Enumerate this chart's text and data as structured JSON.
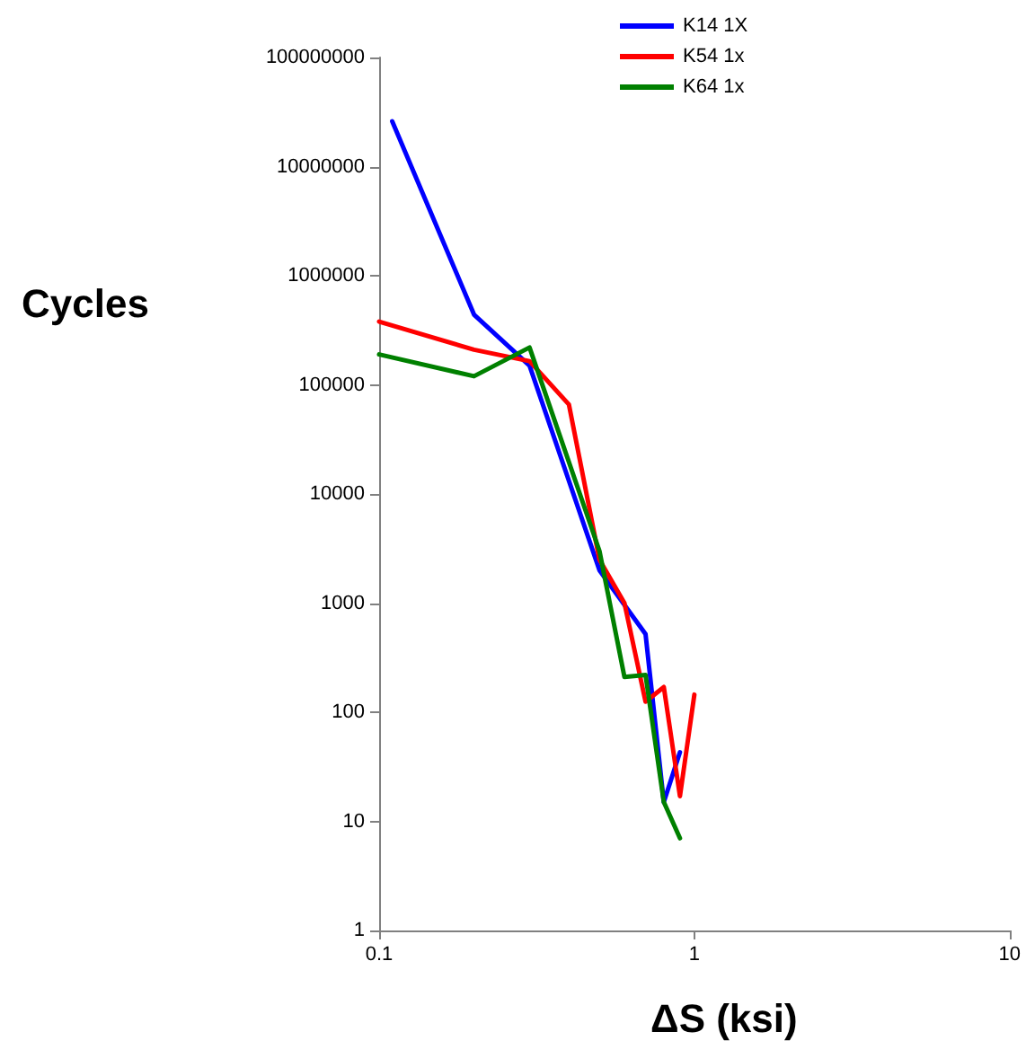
{
  "chart_data": {
    "type": "line",
    "xlabel": "ΔS (ksi)",
    "ylabel": "Cycles",
    "log": "xy",
    "xlim": [
      0.1,
      10
    ],
    "xticks": [
      0.1,
      1,
      10
    ],
    "ylim": [
      1,
      100000000
    ],
    "yticks": [
      1,
      10,
      100,
      1000,
      10000,
      100000,
      1000000,
      10000000,
      100000000
    ],
    "grid": false,
    "legend": "top right",
    "marker": "none",
    "line_style": "solid",
    "series": [
      {
        "name": "K14 1X",
        "color": "#0000ff",
        "x": [
          0.11,
          0.2,
          0.3,
          0.5,
          0.7,
          0.8,
          0.9
        ],
        "values": [
          26000000,
          440000,
          150000,
          2000,
          520,
          15,
          43
        ]
      },
      {
        "name": "K54 1x",
        "color": "#ff0000",
        "x": [
          0.1,
          0.2,
          0.3,
          0.4,
          0.5,
          0.6,
          0.7,
          0.8,
          0.9,
          1.0
        ],
        "values": [
          380000,
          210000,
          165000,
          66000,
          2500,
          1000,
          125,
          170,
          17,
          145
        ]
      },
      {
        "name": "K64 1x",
        "color": "#008000",
        "x": [
          0.1,
          0.2,
          0.3,
          0.5,
          0.6,
          0.7,
          0.8,
          0.9
        ],
        "values": [
          190000,
          120000,
          220000,
          3000,
          210,
          220,
          15,
          7
        ]
      }
    ]
  }
}
